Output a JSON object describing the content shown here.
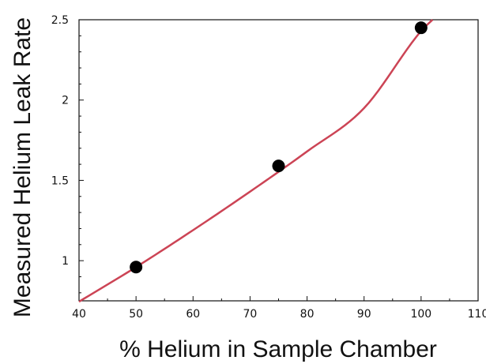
{
  "chart_data": {
    "type": "scatter",
    "title": "",
    "xlabel": "% Helium in Sample Chamber",
    "ylabel": "Measured Helium Leak Rate",
    "xlim": [
      40,
      110
    ],
    "ylim": [
      0.75,
      2.5
    ],
    "xticks": [
      40,
      50,
      60,
      70,
      80,
      90,
      100,
      110
    ],
    "yticks": [
      1,
      1.5,
      2,
      2.5
    ],
    "grid": false,
    "points": {
      "x": [
        50,
        75,
        100
      ],
      "y": [
        0.96,
        1.59,
        2.45
      ]
    },
    "fit_curve": {
      "x": [
        40,
        50,
        60,
        70,
        80,
        90,
        100,
        102
      ],
      "y": [
        0.745,
        0.96,
        1.19,
        1.43,
        1.68,
        1.95,
        2.43,
        2.5
      ]
    },
    "colors": {
      "points": "#000000",
      "fit_curve": "#cc4455",
      "axes": "#111111"
    }
  }
}
